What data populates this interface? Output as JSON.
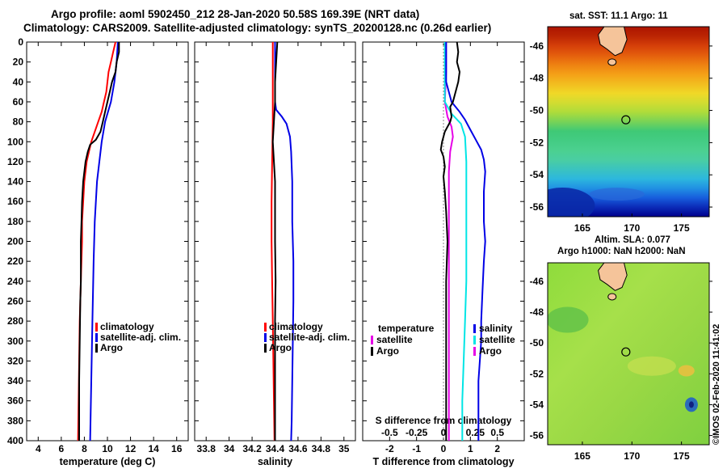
{
  "header": {
    "line1": "Argo profile: aoml 5902450_212 28-Jan-2020 50.58S 169.39E (NRT data)",
    "line2": "Climatology: CARS2009. Satellite-adjusted climatology: synTS_20200128.nc (0.26d earlier)"
  },
  "maps": {
    "sst_title": "sat. SST: 11.1 Argo: 11",
    "sla_title_1": "Altim. SLA: 0.077",
    "sla_title_2": "Argo h1000: NaN h2000: NaN",
    "stamp": "©IMOS 02-Feb-2020 11:41:02",
    "lon_ticks": [
      "165",
      "170",
      "175"
    ],
    "lat_ticks": [
      "-46",
      "-48",
      "-50",
      "-52",
      "-54",
      "-56"
    ],
    "profile_lon": 169.39,
    "profile_lat": -50.58
  },
  "colors": {
    "climatology": "#ff0000",
    "satellite": "#0000e6",
    "argo": "#000000",
    "sat_salinity_diff": "#00e5e5",
    "sat_temp_diff": "#e600e6"
  },
  "chart_data": [
    {
      "type": "line",
      "xlabel": "temperature (deg C)",
      "ylabel": "",
      "xlim": [
        3,
        17
      ],
      "ylim": [
        400,
        0
      ],
      "xticks": [
        4,
        6,
        8,
        10,
        12,
        14,
        16
      ],
      "yticks": [
        0,
        20,
        40,
        60,
        80,
        100,
        120,
        140,
        160,
        180,
        200,
        220,
        240,
        260,
        280,
        300,
        320,
        340,
        360,
        380,
        400
      ],
      "legend": [
        "climatology",
        "satellite-adj. clim.",
        "Argo"
      ],
      "legend_position": "bottom-right",
      "series": [
        {
          "name": "climatology",
          "color": "#ff0000",
          "points": [
            [
              10.7,
              0
            ],
            [
              10.5,
              10
            ],
            [
              10.3,
              20
            ],
            [
              10.1,
              30
            ],
            [
              10.0,
              40
            ],
            [
              9.9,
              50
            ],
            [
              9.7,
              60
            ],
            [
              9.5,
              70
            ],
            [
              9.2,
              80
            ],
            [
              8.9,
              90
            ],
            [
              8.6,
              100
            ],
            [
              8.4,
              110
            ],
            [
              8.2,
              120
            ],
            [
              8.0,
              140
            ],
            [
              7.9,
              160
            ],
            [
              7.8,
              180
            ],
            [
              7.8,
              200
            ],
            [
              7.7,
              240
            ],
            [
              7.6,
              280
            ],
            [
              7.55,
              320
            ],
            [
              7.5,
              360
            ],
            [
              7.45,
              400
            ]
          ]
        },
        {
          "name": "satellite-adj. clim.",
          "color": "#0000e6",
          "points": [
            [
              10.9,
              0
            ],
            [
              10.8,
              20
            ],
            [
              10.6,
              40
            ],
            [
              10.3,
              60
            ],
            [
              9.8,
              80
            ],
            [
              9.5,
              100
            ],
            [
              9.3,
              120
            ],
            [
              9.1,
              140
            ],
            [
              8.9,
              180
            ],
            [
              8.8,
              220
            ],
            [
              8.7,
              280
            ],
            [
              8.6,
              340
            ],
            [
              8.5,
              400
            ]
          ]
        },
        {
          "name": "Argo",
          "color": "#000000",
          "points": [
            [
              11.0,
              0
            ],
            [
              11.0,
              10
            ],
            [
              10.8,
              20
            ],
            [
              10.7,
              30
            ],
            [
              10.4,
              40
            ],
            [
              10.2,
              50
            ],
            [
              10.0,
              60
            ],
            [
              9.8,
              70
            ],
            [
              9.6,
              80
            ],
            [
              9.4,
              90
            ],
            [
              9.0,
              98
            ],
            [
              8.5,
              103
            ],
            [
              8.3,
              110
            ],
            [
              8.1,
              120
            ],
            [
              7.9,
              140
            ],
            [
              7.8,
              160
            ],
            [
              7.75,
              180
            ],
            [
              7.7,
              200
            ],
            [
              7.7,
              240
            ],
            [
              7.65,
              260
            ],
            [
              7.6,
              300
            ],
            [
              7.55,
              340
            ],
            [
              7.55,
              360
            ],
            [
              7.55,
              400
            ]
          ]
        }
      ]
    },
    {
      "type": "line",
      "xlabel": "salinity",
      "ylabel": "",
      "xlim": [
        33.7,
        35.1
      ],
      "ylim": [
        400,
        0
      ],
      "xticks": [
        33.8,
        34,
        34.2,
        34.4,
        34.6,
        34.8,
        35
      ],
      "xtick_labels": [
        "33.8",
        "34",
        "34.2",
        "34.4",
        "34.6",
        "34.8",
        "35"
      ],
      "legend": [
        "climatology",
        "satellite-adj. clim.",
        "Argo"
      ],
      "legend_position": "bottom-right",
      "series": [
        {
          "name": "climatology",
          "color": "#ff0000",
          "points": [
            [
              34.38,
              0
            ],
            [
              34.38,
              40
            ],
            [
              34.38,
              80
            ],
            [
              34.375,
              120
            ],
            [
              34.37,
              160
            ],
            [
              34.37,
              200
            ],
            [
              34.375,
              240
            ],
            [
              34.38,
              280
            ],
            [
              34.385,
              320
            ],
            [
              34.39,
              360
            ],
            [
              34.395,
              400
            ]
          ]
        },
        {
          "name": "satellite-adj. clim.",
          "color": "#0000e6",
          "points": [
            [
              34.4,
              0
            ],
            [
              34.4,
              30
            ],
            [
              34.4,
              60
            ],
            [
              34.41,
              68
            ],
            [
              34.46,
              75
            ],
            [
              34.5,
              82
            ],
            [
              34.53,
              95
            ],
            [
              34.54,
              110
            ],
            [
              34.55,
              140
            ],
            [
              34.55,
              180
            ],
            [
              34.56,
              220
            ],
            [
              34.56,
              260
            ],
            [
              34.555,
              300
            ],
            [
              34.55,
              340
            ],
            [
              34.545,
              380
            ],
            [
              34.54,
              400
            ]
          ]
        },
        {
          "name": "Argo",
          "color": "#000000",
          "points": [
            [
              34.42,
              0
            ],
            [
              34.41,
              20
            ],
            [
              34.4,
              40
            ],
            [
              34.4,
              60
            ],
            [
              34.39,
              80
            ],
            [
              34.38,
              100
            ],
            [
              34.39,
              120
            ],
            [
              34.4,
              140
            ],
            [
              34.4,
              160
            ],
            [
              34.4,
              200
            ],
            [
              34.405,
              240
            ],
            [
              34.4,
              280
            ],
            [
              34.4,
              320
            ],
            [
              34.4,
              360
            ],
            [
              34.4,
              400
            ]
          ]
        }
      ]
    },
    {
      "type": "line",
      "xlabel": "T difference from climatology",
      "xlabel_top": "S difference from climatology",
      "xlim": [
        -3,
        3
      ],
      "ylim": [
        400,
        0
      ],
      "xticks": [
        -2,
        -1,
        0,
        1,
        2
      ],
      "top_ticks": [
        "-0.5",
        "-0.25",
        "0",
        "0.25",
        "0.5"
      ],
      "legend_left": [
        "temperature",
        "satellite",
        "Argo"
      ],
      "legend_right": [
        "salinity",
        "satellite",
        "Argo"
      ],
      "legend_position": "bottom",
      "series": [
        {
          "name": "satellite temperature",
          "color": "#e600e6",
          "points": [
            [
              0.1,
              0
            ],
            [
              0.1,
              30
            ],
            [
              0.05,
              60
            ],
            [
              0.15,
              75
            ],
            [
              0.3,
              85
            ],
            [
              0.35,
              95
            ],
            [
              0.25,
              110
            ],
            [
              0.2,
              130
            ],
            [
              0.2,
              160
            ],
            [
              0.2,
              200
            ],
            [
              0.2,
              240
            ],
            [
              0.2,
              280
            ],
            [
              0.2,
              320
            ],
            [
              0.2,
              360
            ],
            [
              0.2,
              400
            ]
          ]
        },
        {
          "name": "satellite salinity",
          "color": "#00e5e5",
          "points": [
            [
              0.05,
              0
            ],
            [
              0.05,
              30
            ],
            [
              0.05,
              60
            ],
            [
              0.3,
              72
            ],
            [
              0.65,
              82
            ],
            [
              0.8,
              95
            ],
            [
              0.85,
              120
            ],
            [
              0.85,
              160
            ],
            [
              0.85,
              200
            ],
            [
              0.85,
              240
            ],
            [
              0.8,
              280
            ],
            [
              0.75,
              320
            ],
            [
              0.7,
              360
            ],
            [
              0.7,
              400
            ]
          ]
        },
        {
          "name": "Argo salinity",
          "color": "#0000e6",
          "points": [
            [
              0.1,
              0
            ],
            [
              0.1,
              40
            ],
            [
              0.3,
              60
            ],
            [
              0.6,
              70
            ],
            [
              0.8,
              78
            ],
            [
              1.0,
              88
            ],
            [
              1.2,
              98
            ],
            [
              1.4,
              108
            ],
            [
              1.5,
              118
            ],
            [
              1.55,
              130
            ],
            [
              1.5,
              150
            ],
            [
              1.5,
              180
            ],
            [
              1.55,
              200
            ],
            [
              1.5,
              220
            ],
            [
              1.45,
              250
            ],
            [
              1.4,
              280
            ],
            [
              1.4,
              300
            ],
            [
              1.35,
              320
            ],
            [
              1.3,
              340
            ],
            [
              1.3,
              360
            ],
            [
              1.3,
              400
            ]
          ]
        },
        {
          "name": "Argo temperature",
          "color": "#000000",
          "points": [
            [
              0.5,
              0
            ],
            [
              0.55,
              10
            ],
            [
              0.5,
              20
            ],
            [
              0.6,
              30
            ],
            [
              0.55,
              40
            ],
            [
              0.45,
              50
            ],
            [
              0.35,
              60
            ],
            [
              0.25,
              65
            ],
            [
              0.3,
              75
            ],
            [
              0.25,
              80
            ],
            [
              0.05,
              90
            ],
            [
              -0.05,
              100
            ],
            [
              -0.1,
              108
            ],
            [
              0.0,
              115
            ],
            [
              0.05,
              125
            ],
            [
              0.0,
              135
            ],
            [
              0.05,
              150
            ],
            [
              0.1,
              170
            ],
            [
              0.15,
              200
            ],
            [
              0.1,
              240
            ],
            [
              0.1,
              280
            ],
            [
              0.1,
              320
            ],
            [
              0.1,
              360
            ],
            [
              0.1,
              400
            ]
          ]
        }
      ]
    }
  ]
}
